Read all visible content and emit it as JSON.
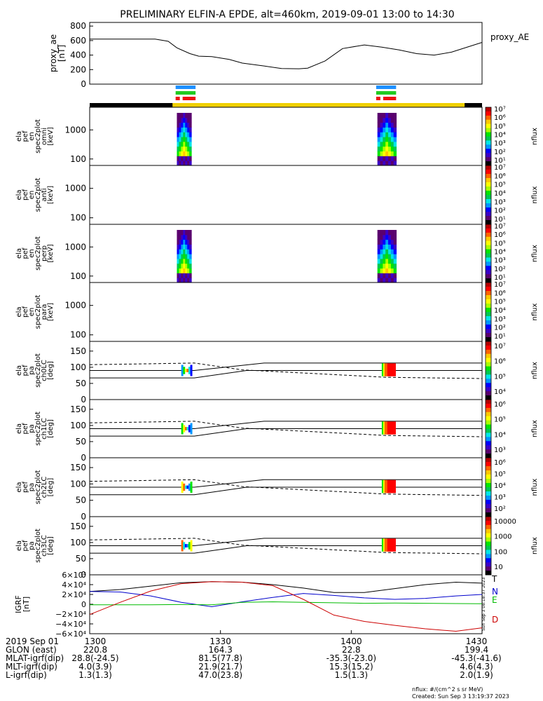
{
  "title": "PRELIMINARY ELFIN-A EPDE, alt=460km, 2019-09-01 13:00 to 14:30",
  "legend_label": "proxy_AE",
  "footer": {
    "units": "nflux: #/(cm^2 s sr MeV)",
    "created": "Created: Sun Sep  3 13:19:37 2023",
    "side_stamp": "Sun Sep  3 08:18:37 2023"
  },
  "colors": {
    "spectrum": [
      "#000000",
      "#5a006e",
      "#3c00c8",
      "#0000ff",
      "#0096ff",
      "#00e6e6",
      "#00c850",
      "#00e600",
      "#aaff00",
      "#ffff00",
      "#ffc800",
      "#ff6400",
      "#ff0000",
      "#b40000"
    ],
    "sci_bar": "#f0d000",
    "sci_black": "#000000",
    "ind_blue": "#1e90ff",
    "ind_green": "#22cc22",
    "ind_red": "#ee1111",
    "T": "#000000",
    "N": "#0000cc",
    "E": "#00bb00",
    "D": "#cc0000"
  },
  "chart_data": [
    {
      "type": "line",
      "name": "proxy_ae",
      "ylabel": [
        "proxy_ae",
        "[nT]"
      ],
      "ylim": [
        0,
        850
      ],
      "yticks": [
        "0",
        "200",
        "400",
        "600",
        "800"
      ],
      "x": [
        "13:00",
        "13:05",
        "13:10",
        "13:15",
        "13:18",
        "13:20",
        "13:23",
        "13:25",
        "13:28",
        "13:32",
        "13:35",
        "13:40",
        "13:44",
        "13:48",
        "13:50",
        "13:54",
        "13:58",
        "14:03",
        "14:07",
        "14:11",
        "14:15",
        "14:19",
        "14:23",
        "14:30"
      ],
      "values": [
        620,
        620,
        620,
        620,
        590,
        500,
        420,
        385,
        380,
        340,
        290,
        250,
        215,
        212,
        220,
        320,
        490,
        540,
        510,
        470,
        420,
        400,
        440,
        575
      ]
    },
    {
      "type": "heatmap",
      "name": "omni",
      "ylabel": [
        "ela",
        "pef",
        "en",
        "spec2plot",
        "omni",
        "[keV]"
      ],
      "yscale": "log",
      "yticks": [
        "100",
        "1000"
      ],
      "colorbar": {
        "ticks": [
          "10^7",
          "10^6",
          "10^5",
          "10^4",
          "10^3",
          "10^2",
          "10^1"
        ],
        "label": "nflux"
      },
      "patches": [
        {
          "start": "13:20",
          "end": "13:23"
        },
        {
          "start": "14:06",
          "end": "14:10"
        }
      ]
    },
    {
      "type": "heatmap",
      "name": "anti",
      "ylabel": [
        "ela",
        "pef",
        "en",
        "spec2plot",
        "anti",
        "[keV]"
      ],
      "yscale": "log",
      "yticks": [
        "100",
        "1000"
      ],
      "colorbar": {
        "ticks": [
          "10^7",
          "10^6",
          "10^5",
          "10^4",
          "10^3",
          "10^2",
          "10^1"
        ],
        "label": "nflux"
      },
      "patches": []
    },
    {
      "type": "heatmap",
      "name": "perp",
      "ylabel": [
        "ela",
        "pef",
        "en",
        "spec2plot",
        "perp",
        "[keV]"
      ],
      "yscale": "log",
      "yticks": [
        "100",
        "1000"
      ],
      "colorbar": {
        "ticks": [
          "10^7",
          "10^6",
          "10^5",
          "10^4",
          "10^3",
          "10^2",
          "10^1"
        ],
        "label": "nflux"
      },
      "patches": [
        {
          "start": "13:20",
          "end": "13:23"
        },
        {
          "start": "14:06",
          "end": "14:10"
        }
      ]
    },
    {
      "type": "heatmap",
      "name": "para",
      "ylabel": [
        "ela",
        "pef",
        "en",
        "spec2plot",
        "para",
        "[keV]"
      ],
      "yscale": "log",
      "yticks": [
        "100",
        "1000"
      ],
      "colorbar": {
        "ticks": [
          "10^7",
          "10^6",
          "10^5",
          "10^4",
          "10^3",
          "10^2",
          "10^1"
        ],
        "label": "nflux"
      },
      "patches": []
    },
    {
      "type": "heatmap",
      "name": "ch0LC",
      "ylabel": [
        "ela",
        "pef",
        "pa",
        "spec2plot",
        "ch0LC",
        "[deg]"
      ],
      "ylim": [
        0,
        180
      ],
      "yticks": [
        "0",
        "50",
        "100",
        "150"
      ],
      "colorbar": {
        "ticks": [
          "10^7",
          "10^6",
          "10^5",
          "10^4"
        ],
        "label": "nflux"
      }
    },
    {
      "type": "heatmap",
      "name": "ch1LC",
      "ylabel": [
        "ela",
        "pef",
        "pa",
        "spec2plot",
        "ch1LC",
        "[deg]"
      ],
      "ylim": [
        0,
        180
      ],
      "yticks": [
        "0",
        "50",
        "100",
        "150"
      ],
      "colorbar": {
        "ticks": [
          "10^6",
          "10^5",
          "10^4",
          "10^3"
        ],
        "label": "nflux"
      }
    },
    {
      "type": "heatmap",
      "name": "ch2LC",
      "ylabel": [
        "ela",
        "pef",
        "pa",
        "spec2plot",
        "ch2LC",
        "[deg]"
      ],
      "ylim": [
        0,
        180
      ],
      "yticks": [
        "0",
        "50",
        "100",
        "150"
      ],
      "colorbar": {
        "ticks": [
          "10^6",
          "10^5",
          "10^4",
          "10^3",
          "10^2"
        ],
        "label": "nflux"
      }
    },
    {
      "type": "heatmap",
      "name": "ch3LC",
      "ylabel": [
        "ela",
        "pef",
        "pa",
        "spec2plot",
        "ch3LC",
        "[deg]"
      ],
      "ylim": [
        0,
        180
      ],
      "yticks": [
        "0",
        "50",
        "100",
        "150"
      ],
      "colorbar": {
        "ticks": [
          "10000",
          "1000",
          "100",
          "10"
        ],
        "label": "nflux"
      },
      "lines": {
        "solid_lower": {
          "x": [
            "13:00",
            "13:24",
            "13:36",
            "14:30"
          ],
          "y": [
            67,
            67,
            90,
            90
          ]
        },
        "solid_upper": {
          "x": [
            "13:00",
            "13:24",
            "13:40",
            "14:30"
          ],
          "y": [
            90,
            90,
            113,
            113
          ]
        },
        "dashed": {
          "x": [
            "13:00",
            "13:10",
            "13:24",
            "13:35",
            "14:08",
            "14:30"
          ],
          "y": [
            108,
            110,
            113,
            92,
            69,
            65
          ]
        }
      }
    },
    {
      "type": "line",
      "name": "IGRF",
      "ylabel": [
        "IGRF",
        "[nT]"
      ],
      "ylim": [
        -60000,
        60000
      ],
      "yticks": [
        "6×10^4",
        "4×10^4",
        "2×10^4",
        "0",
        "−2×10^4",
        "−4×10^4",
        "−6×10^4"
      ],
      "x": [
        "13:00",
        "13:07",
        "13:14",
        "13:21",
        "13:28",
        "13:35",
        "13:42",
        "13:49",
        "13:56",
        "14:03",
        "14:10",
        "14:17",
        "14:24",
        "14:30"
      ],
      "series": [
        {
          "name": "T",
          "values": [
            26000,
            30000,
            37000,
            44000,
            46000,
            45000,
            40000,
            33000,
            24000,
            24000,
            32000,
            40000,
            45000,
            43000
          ]
        },
        {
          "name": "N",
          "values": [
            26000,
            25000,
            17000,
            4000,
            -5000,
            5000,
            14000,
            22000,
            18000,
            13000,
            10000,
            12000,
            17000,
            20000
          ]
        },
        {
          "name": "E",
          "values": [
            -1000,
            -1000,
            -1000,
            -500,
            -1000,
            4000,
            5000,
            4000,
            3000,
            2000,
            2500,
            2000,
            1500,
            1000
          ]
        },
        {
          "name": "D",
          "values": [
            -21000,
            4000,
            27000,
            42000,
            46000,
            45000,
            38000,
            10000,
            -22000,
            -35000,
            -43000,
            -50000,
            -55000,
            -48000
          ]
        }
      ]
    }
  ],
  "xaxis": {
    "ticks": [
      "1300",
      "1330",
      "1400",
      "1430"
    ],
    "rows": [
      {
        "label": "2019 Sep 01",
        "values": [
          "1300",
          "1330",
          "1400",
          "1430"
        ]
      },
      {
        "label": "GLON (east)",
        "values": [
          "220.8",
          "164.3",
          "22.8",
          "199.4"
        ]
      },
      {
        "label": "MLAT-igrf(dip)",
        "values": [
          "28.8(-24.5)",
          "81.5(77.8)",
          "-35.3(-23.0)",
          "-45.3(-41.6)"
        ]
      },
      {
        "label": "MLT-igrf(dip)",
        "values": [
          "4.0(3.9)",
          "21.9(21.7)",
          "15.3(15.2)",
          "4.6(4.3)"
        ]
      },
      {
        "label": "L-igrf(dip)",
        "values": [
          "1.3(1.3)",
          "47.0(23.8)",
          "1.5(1.3)",
          "2.0(1.9)"
        ]
      }
    ]
  }
}
